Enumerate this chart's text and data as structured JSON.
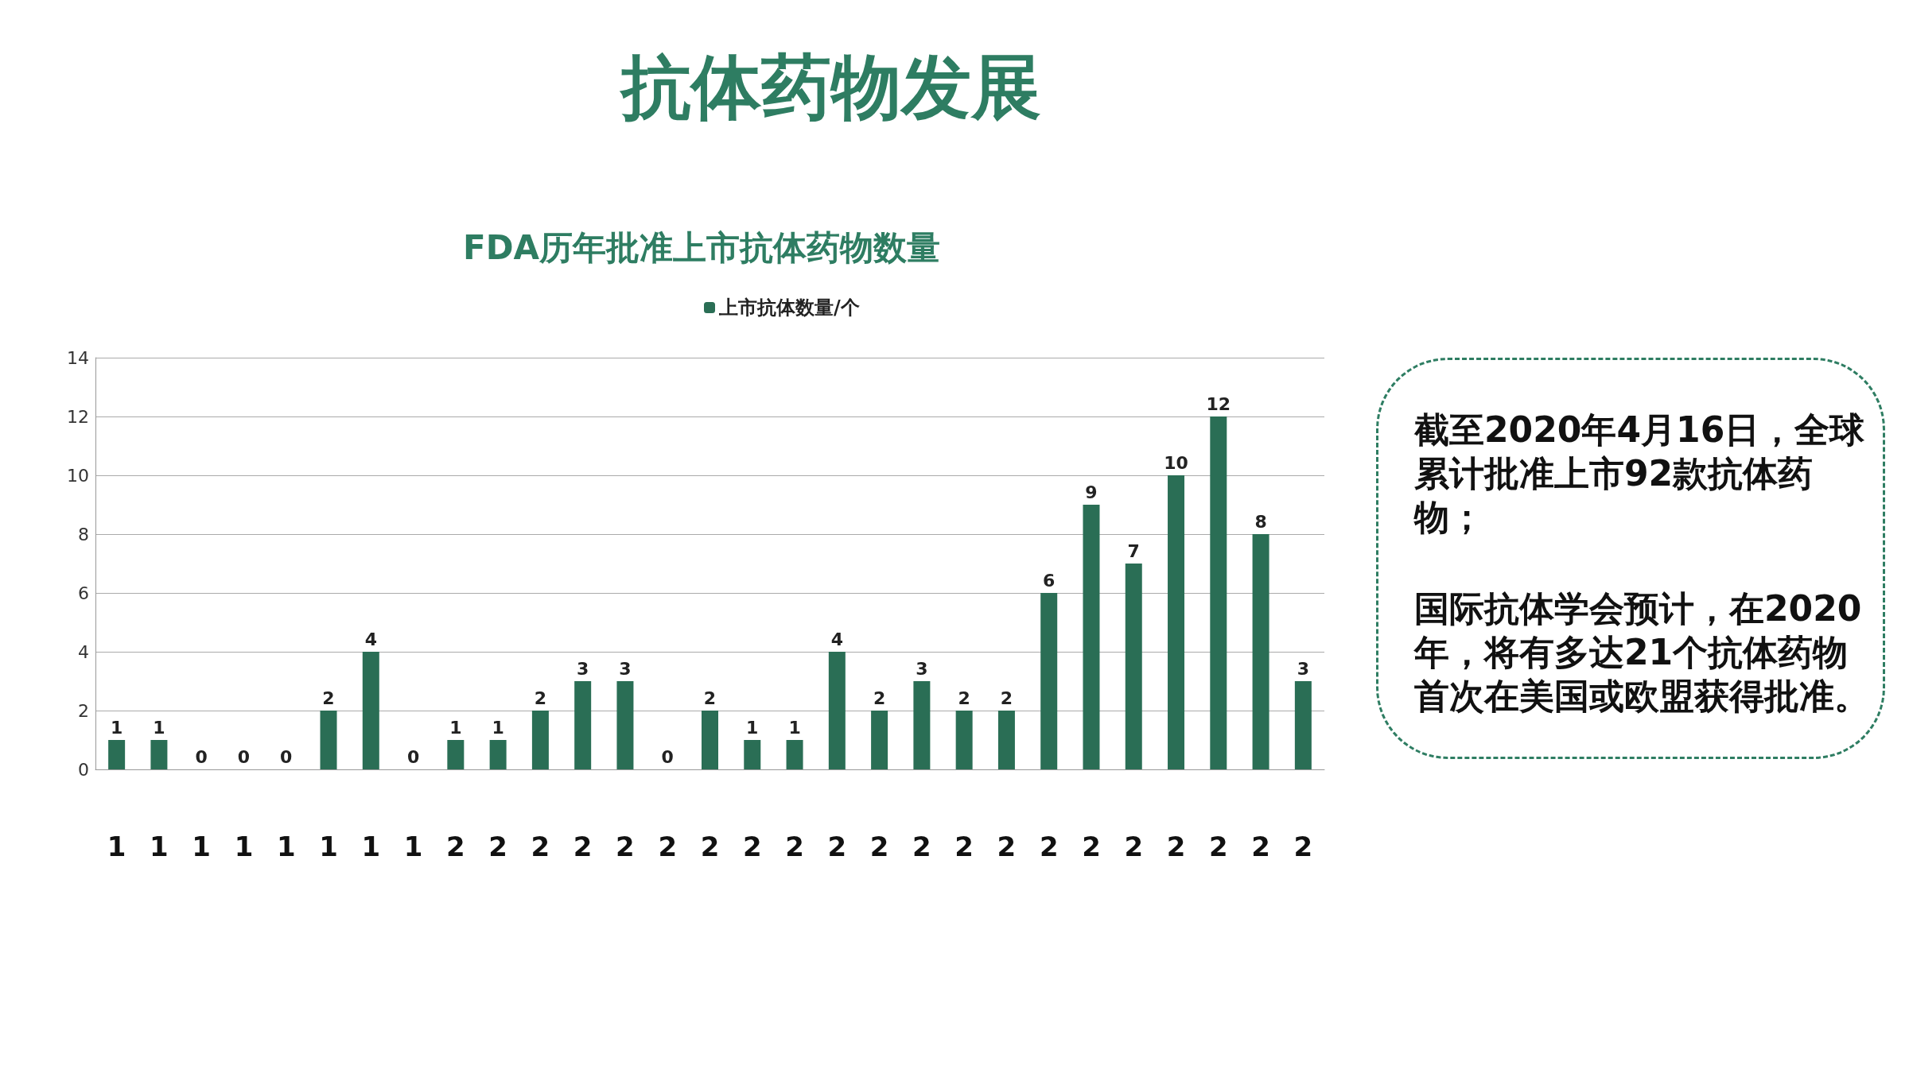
{
  "chart_data": {
    "type": "bar",
    "title": "抗体药物发展",
    "subtitle": "FDA历年批准上市抗体药物数量",
    "categories": [
      "1",
      "1",
      "1",
      "1",
      "1",
      "1",
      "1",
      "1",
      "2",
      "2",
      "2",
      "2",
      "2",
      "2",
      "2",
      "2",
      "2",
      "2",
      "2",
      "2",
      "2",
      "2",
      "2",
      "2",
      "2",
      "2",
      "2",
      "2",
      "2"
    ],
    "series": [
      {
        "name": "上市抗体数量/个",
        "color": "#2a6e55",
        "values": [
          1,
          1,
          0,
          0,
          0,
          2,
          4,
          0,
          1,
          1,
          2,
          3,
          3,
          0,
          2,
          1,
          1,
          4,
          2,
          3,
          2,
          2,
          6,
          9,
          7,
          10,
          12,
          8,
          3
        ]
      }
    ],
    "ylim": [
      0,
      14
    ],
    "yticks": [
      0,
      2,
      4,
      6,
      8,
      10,
      12,
      14
    ],
    "grid": "y",
    "legend": "top",
    "data_labels": true,
    "annotations": [
      "截至2020年4月16日，全球累计批准上市92款抗体药物；",
      "国际抗体学会预计，在2020年，将有多达21个抗体药物首次在美国或欧盟获得批准。"
    ]
  }
}
